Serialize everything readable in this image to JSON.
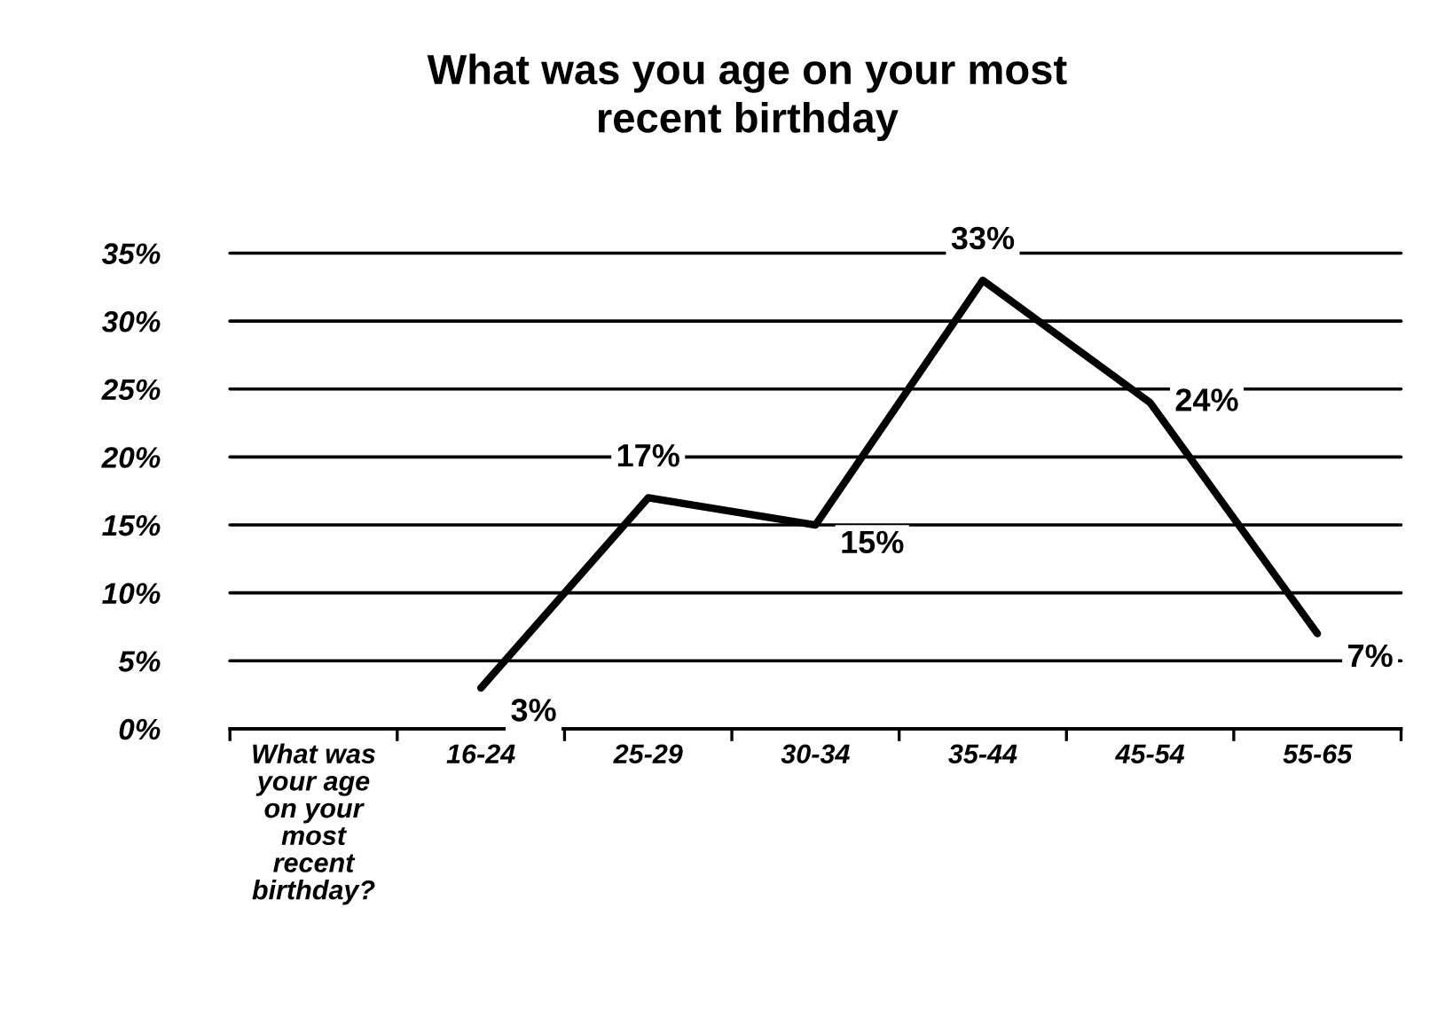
{
  "chart_data": {
    "type": "line",
    "title": "What was you age on your most recent birthday",
    "categories": [
      "What was your age on your most recent birthday?",
      "16-24",
      "25-29",
      "30-34",
      "35-44",
      "45-54",
      "55-65"
    ],
    "series": [
      {
        "color": "#000000",
        "values": [
          null,
          3,
          17,
          15,
          33,
          24,
          7
        ],
        "value_labels": [
          null,
          "3%",
          "17%",
          "15%",
          "33%",
          "24%",
          "7%"
        ]
      }
    ],
    "ylim": [
      0,
      35
    ],
    "yticks": [
      {
        "value": 0,
        "label": "0%"
      },
      {
        "value": 5,
        "label": "5%"
      },
      {
        "value": 10,
        "label": "10%"
      },
      {
        "value": 15,
        "label": "15%"
      },
      {
        "value": 20,
        "label": "20%"
      },
      {
        "value": 25,
        "label": "25%"
      },
      {
        "value": 30,
        "label": "30%"
      },
      {
        "value": 35,
        "label": "35%"
      }
    ],
    "grid": "y",
    "legend": false,
    "marker": "none",
    "line_style": "solid"
  }
}
